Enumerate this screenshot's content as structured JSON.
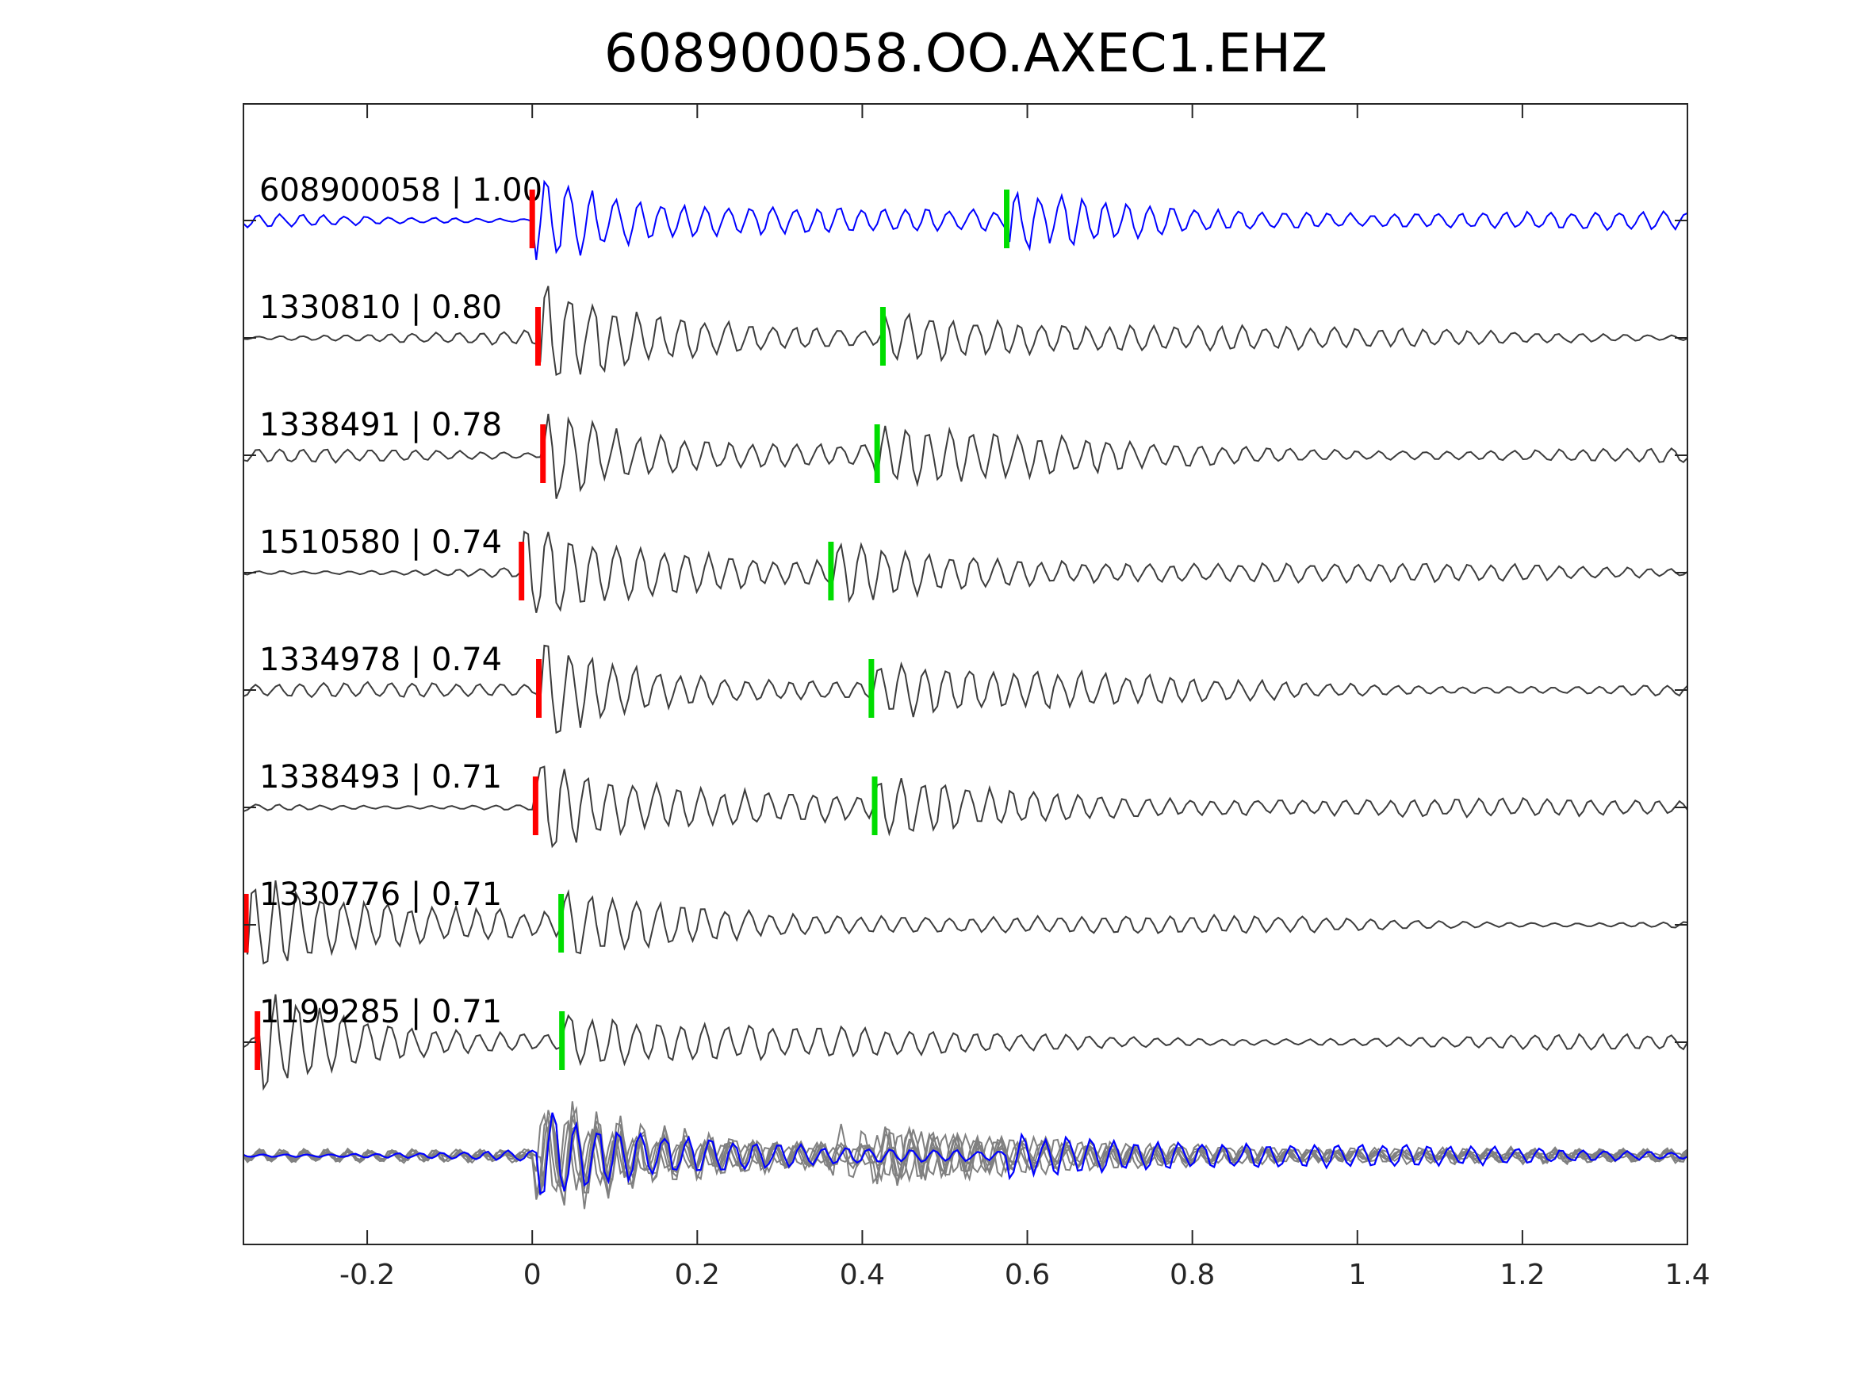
{
  "chart_data": {
    "type": "line",
    "title": "608900058.OO.AXEC1.EHZ",
    "xlabel": "",
    "ylabel": "",
    "xlim": [
      -0.35,
      1.4
    ],
    "xticks": [
      -0.2,
      0,
      0.2,
      0.4,
      0.6,
      0.8,
      1,
      1.2,
      1.4
    ],
    "xtick_labels": [
      "-0.2",
      "0",
      "0.2",
      "0.4",
      "0.6",
      "0.8",
      "1",
      "1.2",
      "1.4"
    ],
    "grid": false,
    "legend": "none",
    "colors": {
      "template": "#0000ff",
      "match": "#3c3c3c",
      "stack": "#808080",
      "p_pick": "#ff0000",
      "s_pick": "#00dd00",
      "axes": "#262626"
    },
    "traces": [
      {
        "label": "608900058 | 1.00",
        "id": "608900058",
        "cc": 1.0,
        "p_pick": 0.0,
        "s_pick": 0.575,
        "template": true
      },
      {
        "label": "1330810 | 0.80",
        "id": "1330810",
        "cc": 0.8,
        "p_pick": 0.007,
        "s_pick": 0.425
      },
      {
        "label": "1338491 | 0.78",
        "id": "1338491",
        "cc": 0.78,
        "p_pick": 0.013,
        "s_pick": 0.418
      },
      {
        "label": "1510580 | 0.74",
        "id": "1510580",
        "cc": 0.74,
        "p_pick": -0.013,
        "s_pick": 0.362
      },
      {
        "label": "1334978 | 0.74",
        "id": "1334978",
        "cc": 0.74,
        "p_pick": 0.008,
        "s_pick": 0.411
      },
      {
        "label": "1338493 | 0.71",
        "id": "1338493",
        "cc": 0.71,
        "p_pick": 0.004,
        "s_pick": 0.415
      },
      {
        "label": "1330776 | 0.71",
        "id": "1330776",
        "cc": 0.71,
        "p_pick": -0.347,
        "s_pick": 0.035
      },
      {
        "label": "1199285 | 0.71",
        "id": "1199285",
        "cc": 0.71,
        "p_pick": -0.333,
        "s_pick": 0.036
      }
    ]
  }
}
